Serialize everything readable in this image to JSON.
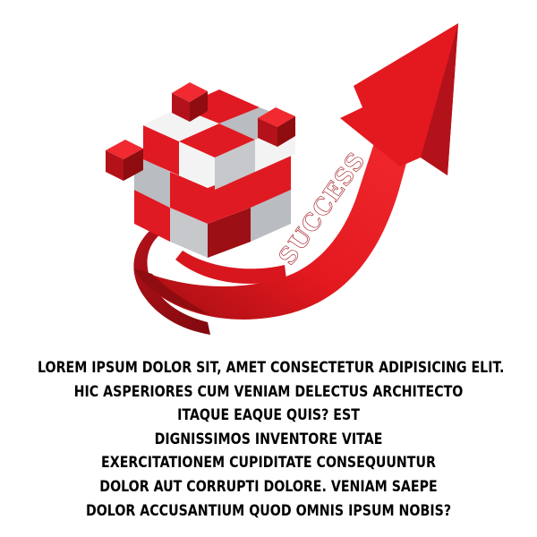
{
  "illustration": {
    "arrow_label": "SUCCESS",
    "colors": {
      "arrow_red": "#e3191f",
      "arrow_dark": "#8f0c10",
      "cube_red": "#e01a22",
      "cube_dark_red": "#9c0f14",
      "cube_white": "#f3f3f3",
      "cube_gray": "#b9bcc0"
    },
    "icons": [
      "cube-puzzle-icon",
      "growth-arrow-icon"
    ]
  },
  "caption": {
    "lines": [
      "LOREM IPSUM DOLOR SIT, AMET CONSECTETUR ADIPISICING ELIT.",
      "HIC ASPERIORES CUM VENIAM DELECTUS ARCHITECTO",
      "ITAQUE EAQUE QUIS? EST",
      "DIGNISSIMOS INVENTORE VITAE",
      "EXERCITATIONEM CUPIDITATE CONSEQUUNTUR",
      "DOLOR AUT CORRUPTI DOLORE. VENIAM SAEPE",
      "DOLOR ACCUSANTIUM QUOD OMNIS IPSUM NOBIS?"
    ]
  }
}
